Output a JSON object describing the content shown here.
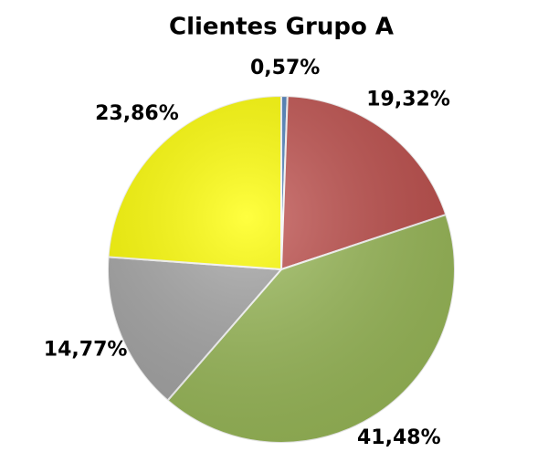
{
  "chart_data": {
    "type": "pie",
    "title": "Clientes Grupo A",
    "values": [
      0.57,
      19.32,
      41.48,
      14.77,
      23.86
    ],
    "value_labels": [
      "0,57%",
      "19,32%",
      "41,48%",
      "14,77%",
      "23,86%"
    ],
    "colors": [
      "#4f81bd",
      "#c0504d",
      "#9bbb59",
      "#a6a6a6",
      "#ffff00"
    ]
  }
}
